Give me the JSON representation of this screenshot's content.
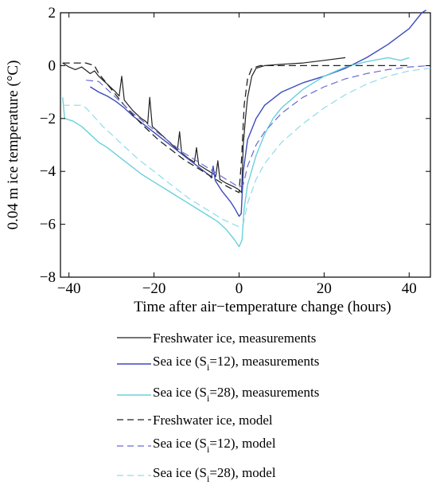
{
  "chart_data": {
    "type": "line",
    "xlabel": "Time after air−temperature change (hours)",
    "ylabel": "0.04 m ice temperature (°C)",
    "xlim": [
      -42,
      45
    ],
    "ylim": [
      -8,
      2
    ],
    "xticks": [
      -40,
      -20,
      0,
      20,
      40
    ],
    "xtick_labels": [
      "−40",
      "−20",
      "0",
      "20",
      "40"
    ],
    "yticks": [
      -8,
      -6,
      -4,
      -2,
      0,
      2
    ],
    "ytick_labels": [
      "−8",
      "−6",
      "−4",
      "−2",
      "0",
      "2"
    ],
    "grid": false,
    "legend_position": "below plot",
    "series": [
      {
        "name": "Freshwater ice, measurements",
        "color": "#222222",
        "dash": "solid",
        "width": 1.2,
        "points": [
          [
            -41.5,
            0.1
          ],
          [
            -40,
            -0.05
          ],
          [
            -38.5,
            -0.15
          ],
          [
            -37,
            -0.05
          ],
          [
            -35,
            -0.3
          ],
          [
            -34,
            -0.2
          ],
          [
            -33,
            -0.4
          ],
          [
            -32,
            -0.55
          ],
          [
            -31,
            -0.7
          ],
          [
            -30,
            -0.85
          ],
          [
            -29,
            -1.0
          ],
          [
            -28.2,
            -1.15
          ],
          [
            -27.6,
            -0.4
          ],
          [
            -27,
            -1.3
          ],
          [
            -26,
            -1.5
          ],
          [
            -25,
            -1.7
          ],
          [
            -24,
            -1.85
          ],
          [
            -23,
            -2.0
          ],
          [
            -22,
            -2.1
          ],
          [
            -21.5,
            -2.2
          ],
          [
            -21,
            -1.2
          ],
          [
            -20.4,
            -2.3
          ],
          [
            -19,
            -2.5
          ],
          [
            -17,
            -2.8
          ],
          [
            -15,
            -3.1
          ],
          [
            -14.5,
            -3.2
          ],
          [
            -14,
            -2.5
          ],
          [
            -13.5,
            -3.3
          ],
          [
            -12,
            -3.5
          ],
          [
            -10.5,
            -3.65
          ],
          [
            -10,
            -3.1
          ],
          [
            -9.5,
            -3.75
          ],
          [
            -8,
            -3.9
          ],
          [
            -6,
            -4.1
          ],
          [
            -5.5,
            -4.2
          ],
          [
            -5,
            -3.6
          ],
          [
            -4.5,
            -4.3
          ],
          [
            -3,
            -4.45
          ],
          [
            -1,
            -4.6
          ],
          [
            0,
            -4.7
          ],
          [
            0.6,
            -4.8
          ],
          [
            1,
            -3.0
          ],
          [
            1.5,
            -2.0
          ],
          [
            2,
            -1.2
          ],
          [
            3,
            -0.4
          ],
          [
            4,
            -0.1
          ],
          [
            6,
            0.0
          ],
          [
            10,
            0.05
          ],
          [
            15,
            0.1
          ],
          [
            20,
            0.2
          ],
          [
            25,
            0.3
          ]
        ]
      },
      {
        "name": "Sea ice (Si=12), measurements",
        "color": "#3b4bbd",
        "dash": "solid",
        "width": 1.4,
        "points": [
          [
            -35,
            -0.8
          ],
          [
            -33,
            -1.0
          ],
          [
            -31,
            -1.15
          ],
          [
            -29,
            -1.35
          ],
          [
            -27,
            -1.6
          ],
          [
            -25,
            -1.9
          ],
          [
            -23,
            -2.15
          ],
          [
            -21,
            -2.4
          ],
          [
            -19,
            -2.65
          ],
          [
            -17,
            -2.9
          ],
          [
            -15,
            -3.15
          ],
          [
            -13,
            -3.4
          ],
          [
            -11,
            -3.65
          ],
          [
            -9,
            -3.9
          ],
          [
            -7,
            -4.15
          ],
          [
            -6.5,
            -4.25
          ],
          [
            -6.1,
            -3.8
          ],
          [
            -5.6,
            -4.35
          ],
          [
            -4,
            -4.75
          ],
          [
            -3,
            -4.95
          ],
          [
            -2,
            -5.15
          ],
          [
            -1,
            -5.4
          ],
          [
            0,
            -5.7
          ],
          [
            0.5,
            -5.6
          ],
          [
            1,
            -4.0
          ],
          [
            2,
            -2.8
          ],
          [
            4,
            -2.0
          ],
          [
            6,
            -1.5
          ],
          [
            10,
            -1.0
          ],
          [
            15,
            -0.65
          ],
          [
            20,
            -0.4
          ],
          [
            25,
            -0.1
          ],
          [
            30,
            0.3
          ],
          [
            35,
            0.8
          ],
          [
            40,
            1.4
          ],
          [
            43,
            2.0
          ],
          [
            44,
            2.1
          ]
        ]
      },
      {
        "name": "Sea ice (Si=28), measurements",
        "color": "#6ad0dc",
        "dash": "solid",
        "width": 1.4,
        "points": [
          [
            -41.5,
            -1.2
          ],
          [
            -41,
            -2.0
          ],
          [
            -39,
            -2.1
          ],
          [
            -37,
            -2.3
          ],
          [
            -35,
            -2.6
          ],
          [
            -33,
            -2.9
          ],
          [
            -31,
            -3.1
          ],
          [
            -29,
            -3.35
          ],
          [
            -27,
            -3.6
          ],
          [
            -25,
            -3.85
          ],
          [
            -23,
            -4.1
          ],
          [
            -21,
            -4.3
          ],
          [
            -19,
            -4.5
          ],
          [
            -17,
            -4.7
          ],
          [
            -15,
            -4.9
          ],
          [
            -13,
            -5.1
          ],
          [
            -11,
            -5.3
          ],
          [
            -9,
            -5.5
          ],
          [
            -7,
            -5.7
          ],
          [
            -5,
            -5.9
          ],
          [
            -3,
            -6.2
          ],
          [
            -1,
            -6.6
          ],
          [
            0,
            -6.85
          ],
          [
            0.7,
            -6.6
          ],
          [
            1.2,
            -5.4
          ],
          [
            2,
            -4.5
          ],
          [
            4,
            -3.4
          ],
          [
            6,
            -2.6
          ],
          [
            8,
            -2.0
          ],
          [
            10,
            -1.6
          ],
          [
            15,
            -0.9
          ],
          [
            20,
            -0.4
          ],
          [
            25,
            -0.05
          ],
          [
            30,
            0.15
          ],
          [
            35,
            0.3
          ],
          [
            38,
            0.2
          ],
          [
            40,
            0.3
          ]
        ]
      },
      {
        "name": "Freshwater ice, model",
        "color": "#222222",
        "dash": "9,5",
        "width": 1.3,
        "points": [
          [
            -41.5,
            0.1
          ],
          [
            -36,
            0.1
          ],
          [
            -34,
            0.0
          ],
          [
            -33,
            -0.3
          ],
          [
            -31,
            -0.7
          ],
          [
            -29,
            -1.1
          ],
          [
            -27,
            -1.5
          ],
          [
            -25,
            -1.85
          ],
          [
            -23,
            -2.2
          ],
          [
            -21,
            -2.5
          ],
          [
            -19,
            -2.8
          ],
          [
            -17,
            -3.05
          ],
          [
            -15,
            -3.3
          ],
          [
            -13,
            -3.55
          ],
          [
            -11,
            -3.75
          ],
          [
            -9,
            -3.95
          ],
          [
            -7,
            -4.15
          ],
          [
            -5,
            -4.35
          ],
          [
            -3,
            -4.55
          ],
          [
            -1,
            -4.72
          ],
          [
            0,
            -4.8
          ],
          [
            0.6,
            -3.5
          ],
          [
            1.2,
            -1.5
          ],
          [
            2,
            -0.5
          ],
          [
            3,
            -0.1
          ],
          [
            5,
            0.0
          ],
          [
            10,
            0.0
          ],
          [
            40,
            0.0
          ]
        ]
      },
      {
        "name": "Sea ice (Si=12), model",
        "color": "#6a6ad4",
        "dash": "9,5",
        "width": 1.2,
        "points": [
          [
            -36,
            -0.55
          ],
          [
            -33,
            -0.6
          ],
          [
            -31,
            -0.9
          ],
          [
            -29,
            -1.2
          ],
          [
            -27,
            -1.5
          ],
          [
            -25,
            -1.8
          ],
          [
            -23,
            -2.05
          ],
          [
            -21,
            -2.3
          ],
          [
            -19,
            -2.55
          ],
          [
            -17,
            -2.8
          ],
          [
            -15,
            -3.05
          ],
          [
            -13,
            -3.3
          ],
          [
            -11,
            -3.5
          ],
          [
            -9,
            -3.7
          ],
          [
            -7,
            -3.9
          ],
          [
            -5,
            -4.1
          ],
          [
            -3,
            -4.3
          ],
          [
            -1,
            -4.5
          ],
          [
            0,
            -4.6
          ],
          [
            1,
            -4.5
          ],
          [
            2,
            -3.8
          ],
          [
            4,
            -3.0
          ],
          [
            6,
            -2.5
          ],
          [
            10,
            -1.8
          ],
          [
            15,
            -1.2
          ],
          [
            20,
            -0.8
          ],
          [
            25,
            -0.5
          ],
          [
            30,
            -0.3
          ],
          [
            35,
            -0.15
          ],
          [
            40,
            -0.05
          ],
          [
            45,
            0.0
          ]
        ]
      },
      {
        "name": "Sea ice (Si=28), model",
        "color": "#8fdcea",
        "dash": "9,5",
        "width": 1.2,
        "points": [
          [
            -41.5,
            -1.5
          ],
          [
            -37,
            -1.5
          ],
          [
            -36,
            -1.6
          ],
          [
            -34,
            -1.95
          ],
          [
            -32,
            -2.3
          ],
          [
            -30,
            -2.6
          ],
          [
            -28,
            -2.9
          ],
          [
            -26,
            -3.2
          ],
          [
            -24,
            -3.5
          ],
          [
            -22,
            -3.75
          ],
          [
            -20,
            -4.0
          ],
          [
            -18,
            -4.25
          ],
          [
            -16,
            -4.5
          ],
          [
            -14,
            -4.75
          ],
          [
            -12,
            -5.0
          ],
          [
            -10,
            -5.2
          ],
          [
            -8,
            -5.4
          ],
          [
            -6,
            -5.6
          ],
          [
            -4,
            -5.8
          ],
          [
            -2,
            -5.95
          ],
          [
            0,
            -6.1
          ],
          [
            1,
            -6.0
          ],
          [
            2,
            -5.2
          ],
          [
            4,
            -4.3
          ],
          [
            6,
            -3.7
          ],
          [
            10,
            -2.9
          ],
          [
            15,
            -2.2
          ],
          [
            20,
            -1.6
          ],
          [
            25,
            -1.1
          ],
          [
            30,
            -0.7
          ],
          [
            35,
            -0.4
          ],
          [
            40,
            -0.2
          ],
          [
            45,
            -0.1
          ]
        ]
      }
    ],
    "legend": [
      {
        "text_main": "Freshwater ice, measurements",
        "subscript_parts": null
      },
      {
        "text_main": "Sea ice (S",
        "subscript": "i",
        "text_tail": "=12), measurements"
      },
      {
        "text_main": "Sea ice (S",
        "subscript": "i",
        "text_tail": "=28), measurements"
      },
      {
        "text_main": "Freshwater ice, model",
        "subscript_parts": null
      },
      {
        "text_main": "Sea ice (S",
        "subscript": "i",
        "text_tail": "=12), model"
      },
      {
        "text_main": "Sea ice (S",
        "subscript": "i",
        "text_tail": "=28), model"
      }
    ]
  }
}
